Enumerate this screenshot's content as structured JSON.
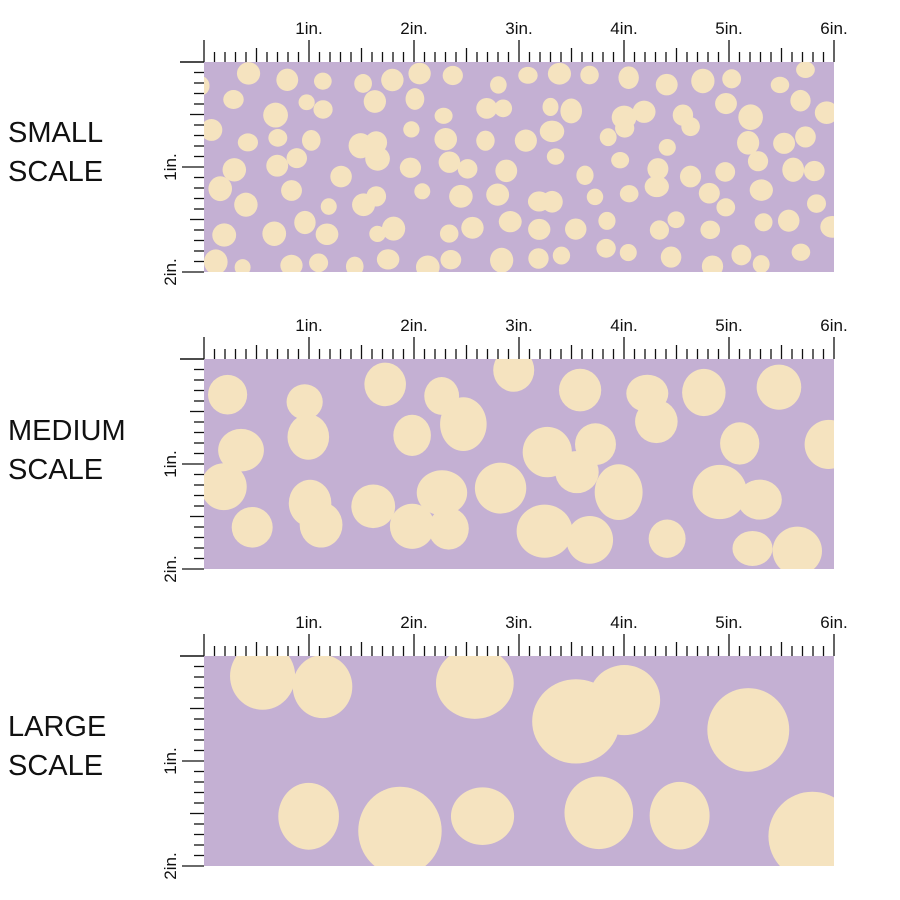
{
  "colors": {
    "background": "#c4b0d3",
    "dot": "#f5e3bf",
    "ruler": "#111111"
  },
  "ruler": {
    "horizontal_labels": [
      "1in.",
      "2in.",
      "3in.",
      "4in.",
      "5in.",
      "6in."
    ],
    "vertical_labels": [
      "1in.",
      "2in."
    ]
  },
  "panels": [
    {
      "line1": "SMALL",
      "line2": "SCALE",
      "dot_radius_in": 0.1,
      "dot_count": 110
    },
    {
      "line1": "MEDIUM",
      "line2": "SCALE",
      "dot_radius_in": 0.22,
      "dot_count": 28
    },
    {
      "line1": "LARGE",
      "line2": "SCALE",
      "dot_radius_in": 0.37,
      "dot_count": 11
    }
  ]
}
